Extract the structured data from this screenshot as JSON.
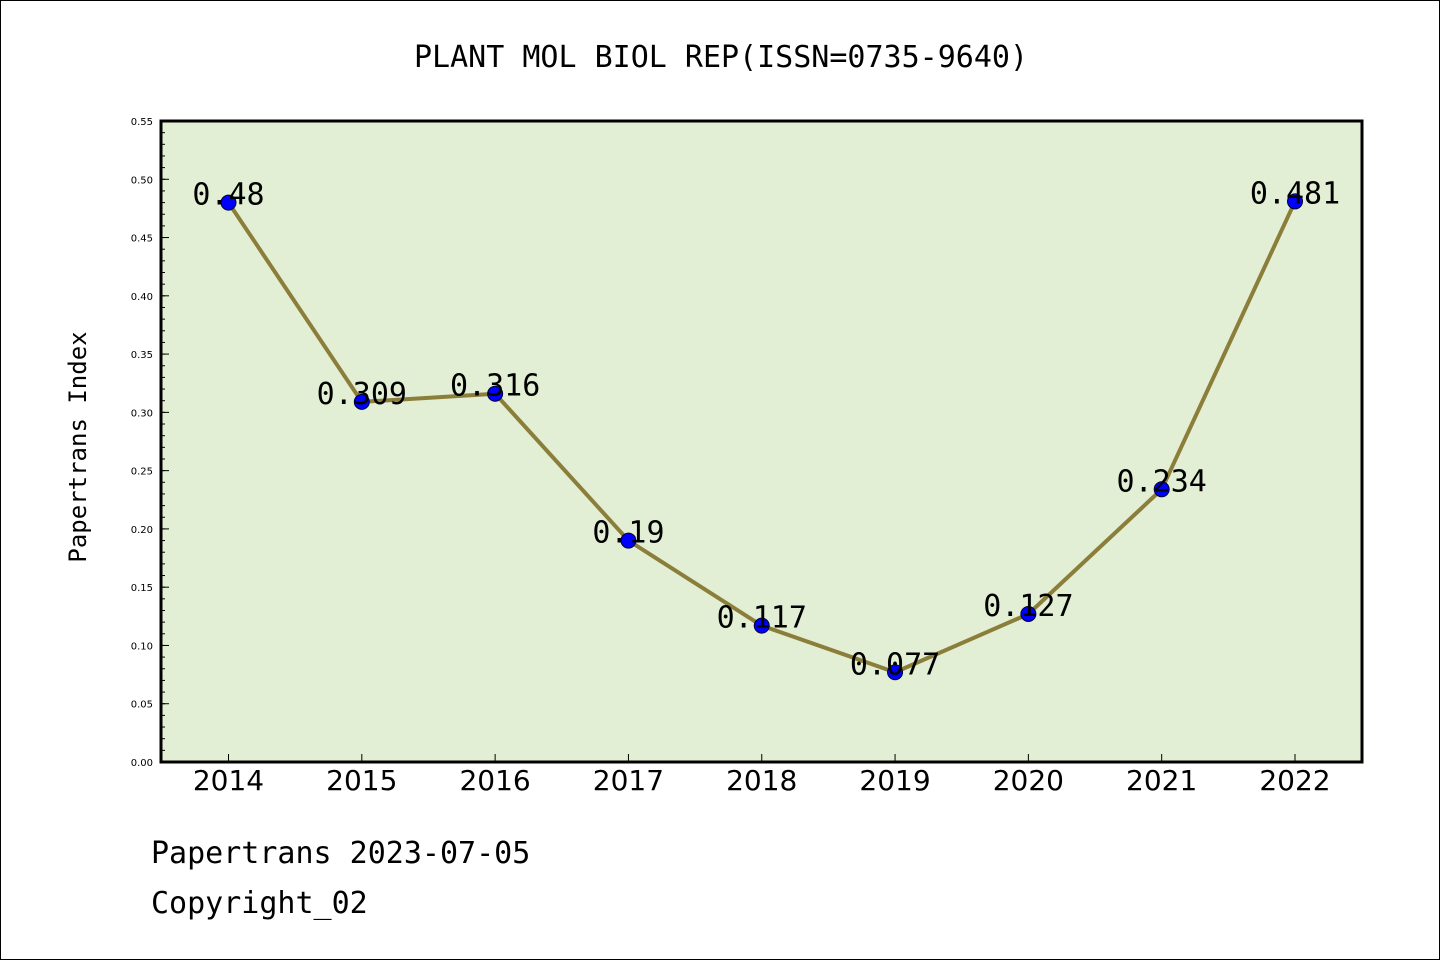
{
  "chart_data": {
    "type": "line",
    "title": "PLANT MOL BIOL REP(ISSN=0735-9640)",
    "xlabel": "",
    "ylabel": "Papertrans Index",
    "categories": [
      "2014",
      "2015",
      "2016",
      "2017",
      "2018",
      "2019",
      "2020",
      "2021",
      "2022"
    ],
    "values": [
      0.48,
      0.309,
      0.316,
      0.19,
      0.117,
      0.077,
      0.127,
      0.234,
      0.481
    ],
    "data_labels": [
      "0.48",
      "0.309",
      "0.316",
      "0.19",
      "0.117",
      "0.077",
      "0.127",
      "0.234",
      "0.481"
    ],
    "ylim": [
      0,
      0.55
    ],
    "yticks": [
      "0.00",
      "0.05",
      "0.10",
      "0.15",
      "0.20",
      "0.25",
      "0.30",
      "0.35",
      "0.40",
      "0.45",
      "0.50",
      "0.55"
    ],
    "grid": false,
    "legend": "none",
    "colors": {
      "plot_background": "#e2efd4",
      "line": "#8b7d3a",
      "marker": "#0000ff",
      "axis": "#000000"
    }
  },
  "footer": {
    "line1": "Papertrans 2023-07-05",
    "line2": "Copyright_02"
  }
}
